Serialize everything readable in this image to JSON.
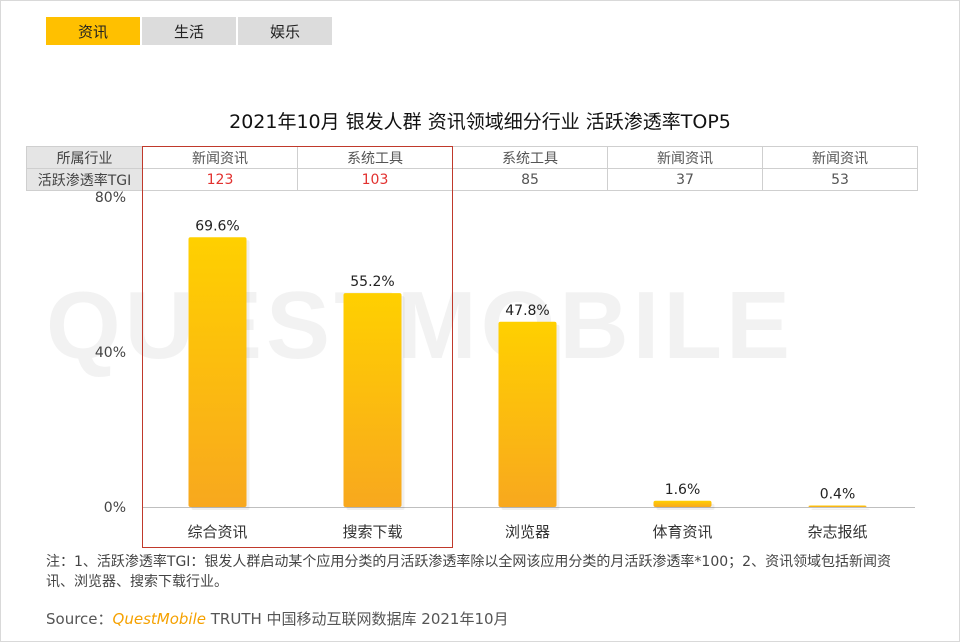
{
  "tabs": [
    {
      "label": "资讯",
      "active": true
    },
    {
      "label": "生活",
      "active": false
    },
    {
      "label": "娱乐",
      "active": false
    }
  ],
  "table": {
    "row1_header": "所属行业",
    "row2_header": "活跃渗透率TGI",
    "industries": [
      "新闻资讯",
      "系统工具",
      "系统工具",
      "新闻资讯",
      "新闻资讯"
    ],
    "tgi": [
      "123",
      "103",
      "85",
      "37",
      "53"
    ]
  },
  "watermark": "QUESTMOBILE",
  "note": "注：1、活跃渗透率TGI：银发人群启动某个应用分类的月活跃渗透率除以全网该应用分类的月活跃渗透率*100；2、资讯领域包括新闻资讯、浏览器、搜索下载行业。",
  "source": {
    "prefix": "Source：",
    "brand": "QuestMobile",
    "rest": " TRUTH 中国移动互联网数据库 2021年10月"
  },
  "colors": {
    "bar_top": "#ffd000",
    "bar_bottom": "#f8a81e",
    "accent": "#ffc000",
    "highlight": "#c0392b",
    "tgi_high": "#e2312f"
  },
  "chart_data": {
    "type": "bar",
    "title": "2021年10月 银发人群 资讯领域细分行业 活跃渗透率TOP5",
    "categories": [
      "综合资讯",
      "搜索下载",
      "浏览器",
      "体育资讯",
      "杂志报纸"
    ],
    "values": [
      69.6,
      55.2,
      47.8,
      1.6,
      0.4
    ],
    "value_labels": [
      "69.6%",
      "55.2%",
      "47.8%",
      "1.6%",
      "0.4%"
    ],
    "ylim": [
      0,
      80
    ],
    "yticks": [
      "0%",
      "40%",
      "80%"
    ],
    "highlighted_categories": [
      "综合资讯",
      "搜索下载"
    ]
  }
}
